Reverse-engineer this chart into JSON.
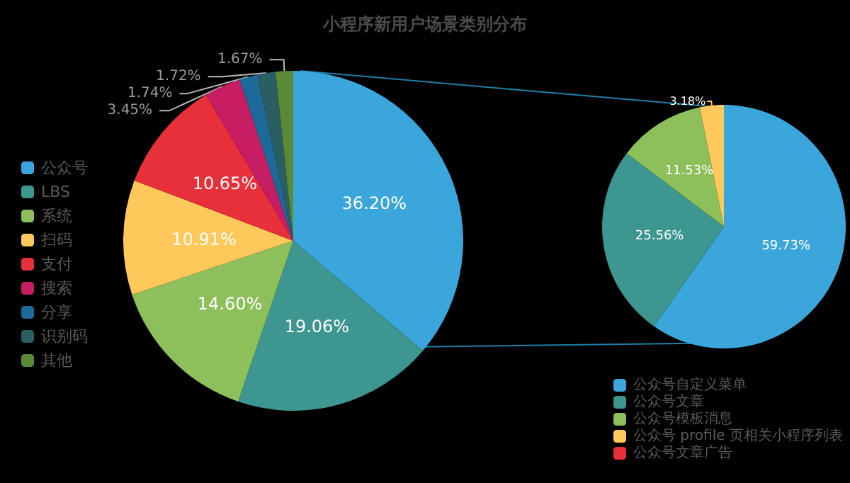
{
  "chart_data": [
    {
      "type": "pie",
      "title": "小程序新用户场景类别分布",
      "categories": [
        "公众号",
        "LBS",
        "系统",
        "扫码",
        "支付",
        "搜索",
        "分享",
        "识别码",
        "其他"
      ],
      "values": [
        36.2,
        19.06,
        14.6,
        10.91,
        10.65,
        3.45,
        1.74,
        1.72,
        1.67
      ],
      "colors": [
        "#3aa6dc",
        "#3d9690",
        "#8dbf5a",
        "#fec95a",
        "#e8303a",
        "#c71d63",
        "#1d6a99",
        "#2b5e63",
        "#5a8a35"
      ],
      "value_labels": [
        "36.20%",
        "19.06%",
        "14.60%",
        "10.91%",
        "10.65%",
        "3.45%",
        "1.74%",
        "1.72%",
        "1.67%"
      ],
      "legend": "left"
    },
    {
      "type": "pie",
      "categories": [
        "公众号自定义菜单",
        "公众号文章",
        "公众号模板消息",
        "公众号 profile 页相关小程序列表",
        "公众号文章广告"
      ],
      "values": [
        59.73,
        25.56,
        11.53,
        3.18,
        null
      ],
      "colors": [
        "#3aa6dc",
        "#3d9690",
        "#8dbf5a",
        "#fec95a",
        "#e8303a"
      ],
      "value_labels": [
        "59.73%",
        "25.56%",
        "11.53%",
        "3.18%",
        null
      ],
      "legend": "bottom right"
    }
  ]
}
